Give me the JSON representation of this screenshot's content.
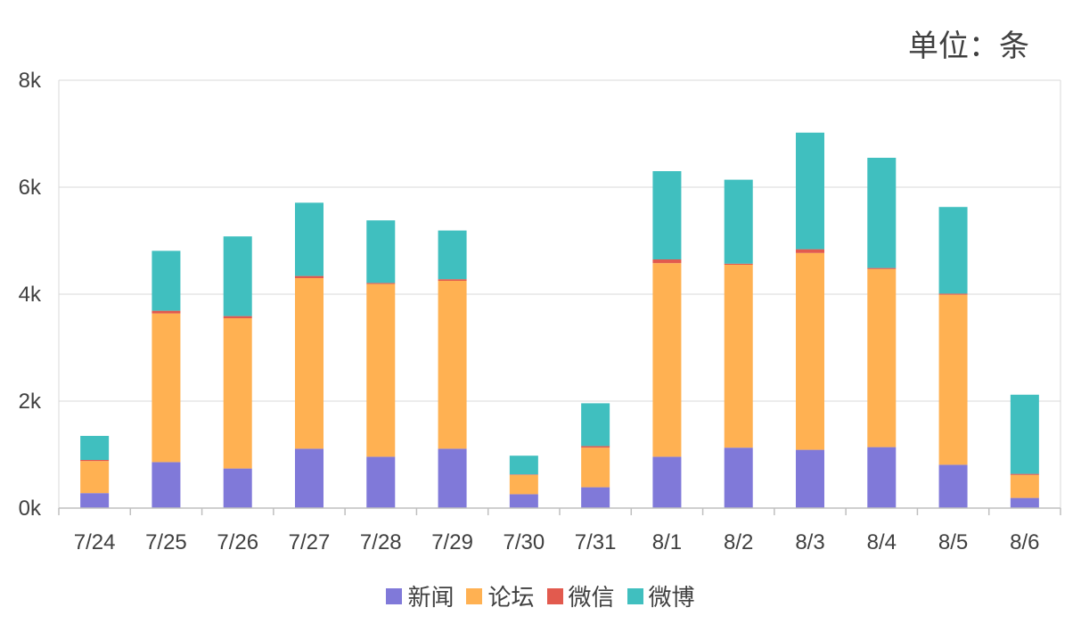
{
  "unit_label": "单位：条",
  "chart_data": {
    "type": "bar",
    "stacked": true,
    "categories": [
      "7/24",
      "7/25",
      "7/26",
      "7/27",
      "7/28",
      "7/29",
      "7/30",
      "7/31",
      "8/1",
      "8/2",
      "8/3",
      "8/4",
      "8/5",
      "8/6"
    ],
    "yticks": [
      "0k",
      "2k",
      "4k",
      "6k",
      "8k"
    ],
    "ylim": [
      0,
      8000
    ],
    "grid": true,
    "legend_position": "bottom",
    "series": [
      {
        "name": "新闻",
        "color": "#8079D9",
        "values": [
          280,
          860,
          740,
          1110,
          960,
          1110,
          260,
          390,
          960,
          1130,
          1090,
          1140,
          810,
          190
        ]
      },
      {
        "name": "论坛",
        "color": "#FFB152",
        "values": [
          600,
          2780,
          2810,
          3190,
          3230,
          3140,
          360,
          740,
          3620,
          3420,
          3680,
          3330,
          3180,
          430
        ]
      },
      {
        "name": "微信",
        "color": "#E25A4E",
        "values": [
          20,
          50,
          40,
          40,
          20,
          30,
          10,
          30,
          70,
          20,
          70,
          20,
          20,
          20
        ]
      },
      {
        "name": "微博",
        "color": "#40BFBF",
        "values": [
          450,
          1120,
          1490,
          1370,
          1170,
          910,
          350,
          800,
          1650,
          1570,
          2180,
          2060,
          1620,
          1480
        ]
      }
    ]
  }
}
